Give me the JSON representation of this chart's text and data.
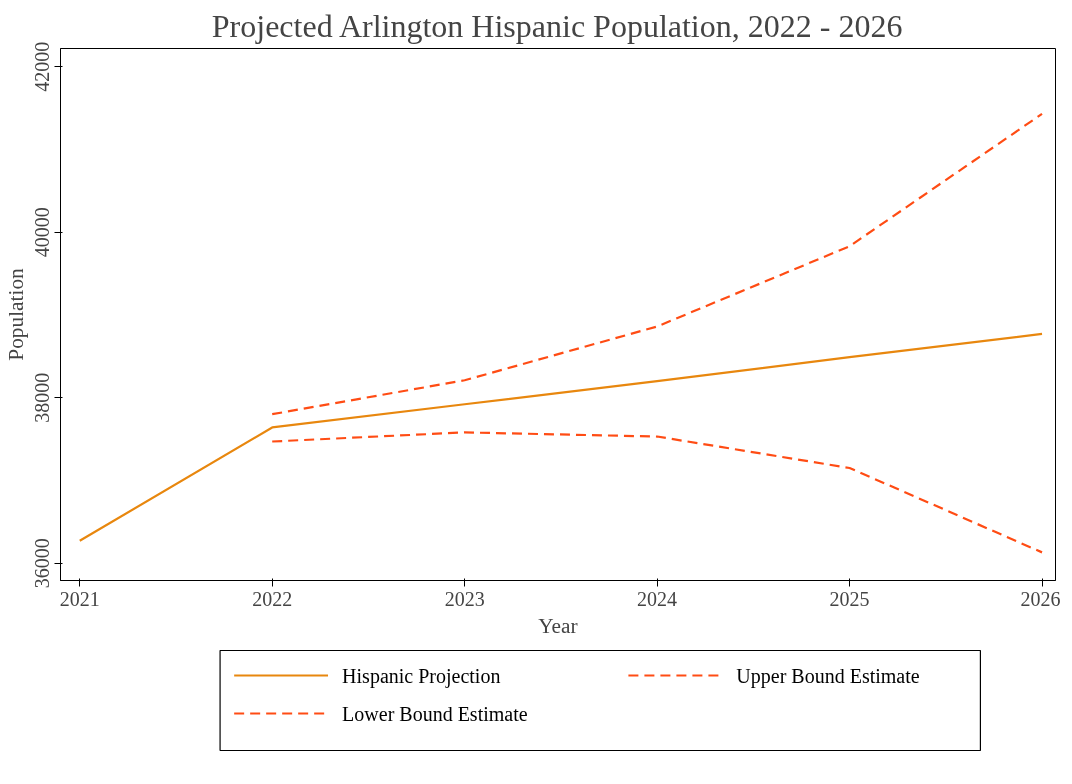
{
  "chart_data": {
    "type": "line",
    "title": "Projected Arlington Hispanic Population, 2022 - 2026",
    "xlabel": "Year",
    "ylabel": "Population",
    "x": [
      2021,
      2022,
      2023,
      2024,
      2025,
      2026
    ],
    "series": [
      {
        "name": "Hispanic Projection",
        "color": "#e8870e",
        "line_style": "solid",
        "values": [
          36270,
          37640,
          37920,
          38200,
          38490,
          38770
        ]
      },
      {
        "name": "Upper Bound Estimate",
        "color": "#ff4c14",
        "line_style": "dashed",
        "values": [
          null,
          37800,
          38210,
          38860,
          39830,
          41430
        ]
      },
      {
        "name": "Lower Bound Estimate",
        "color": "#ff4c14",
        "line_style": "dashed",
        "values": [
          null,
          37470,
          37580,
          37530,
          37150,
          36130
        ]
      }
    ],
    "xlim": [
      2020.9,
      2026.07
    ],
    "ylim": [
      35790,
      42220
    ],
    "xticks": [
      2021,
      2022,
      2023,
      2024,
      2025,
      2026
    ],
    "yticks": [
      36000,
      38000,
      40000,
      42000
    ],
    "grid": false,
    "legend": "bottom",
    "marker": "none"
  }
}
